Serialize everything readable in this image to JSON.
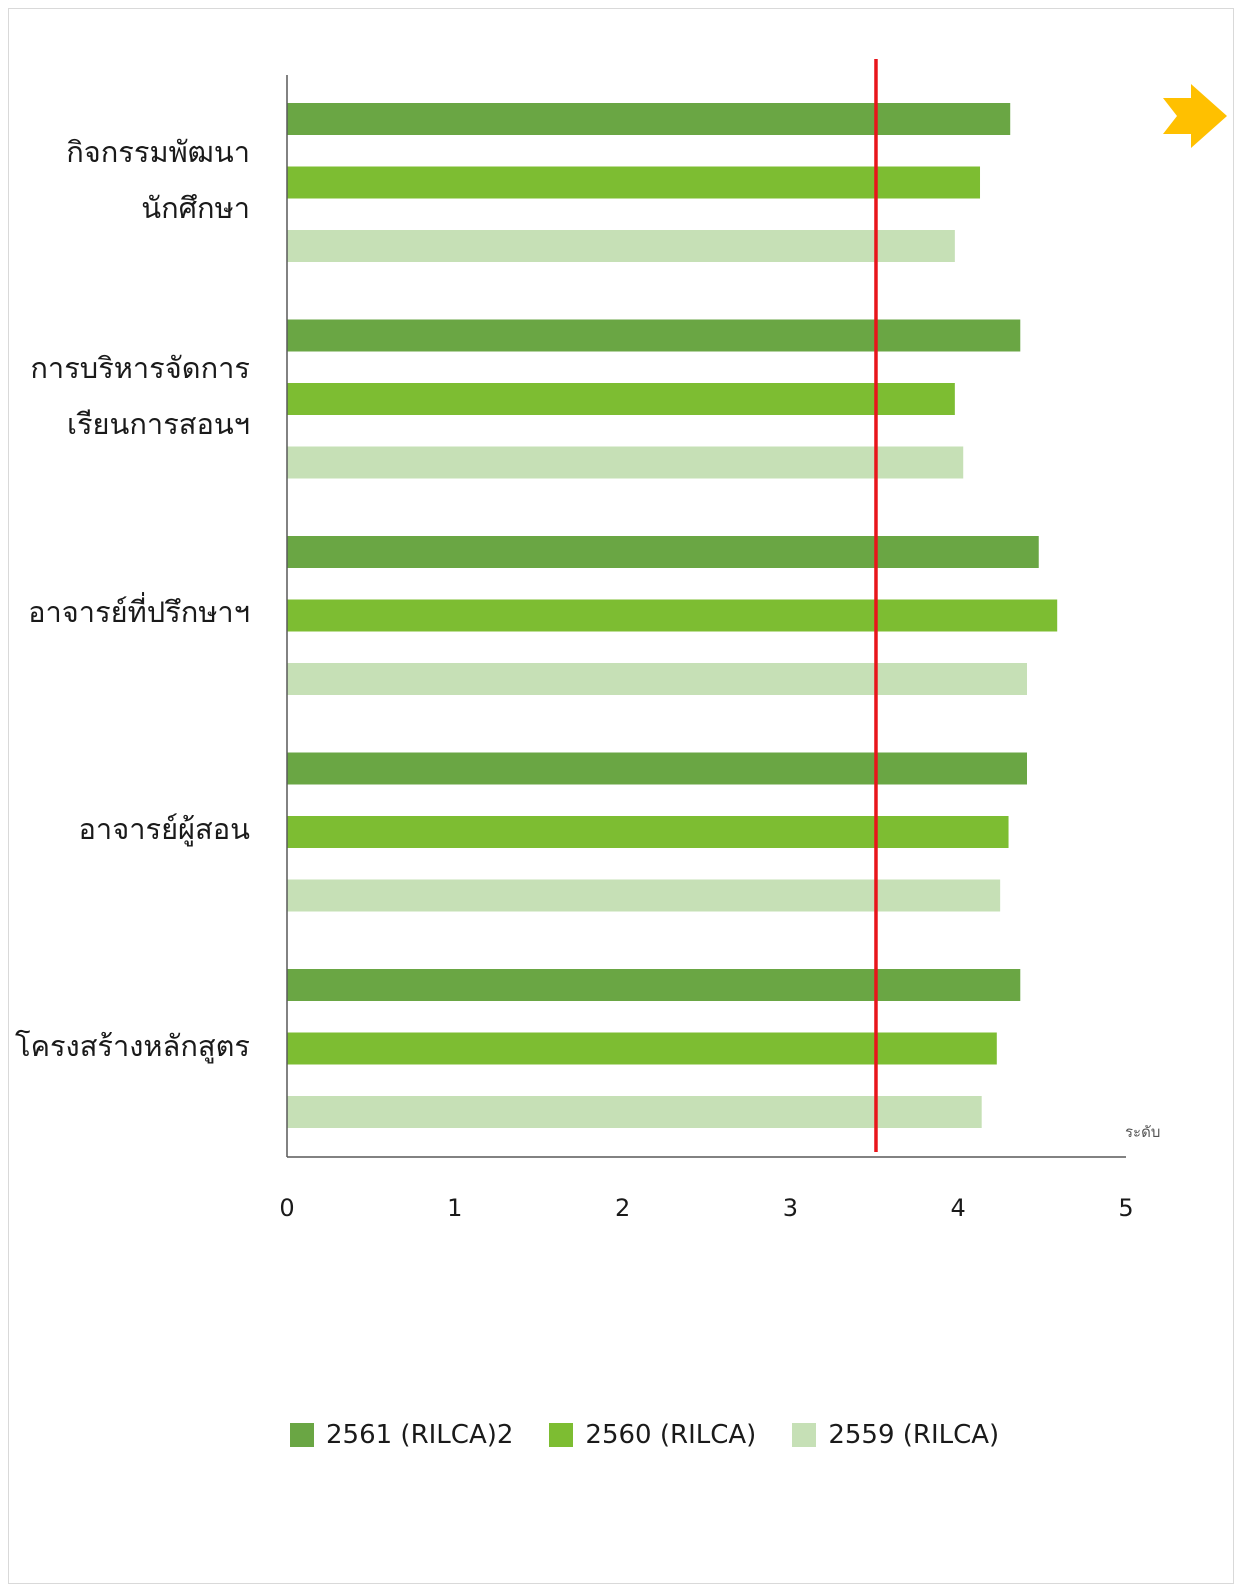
{
  "chart_data": {
    "type": "bar",
    "orientation": "horizontal",
    "categories": [
      "กิจกรรมพัฒนา\nนักศึกษา",
      "การบริหารจัดการ\nเรียนการสอนฯ",
      "อาจารย์ที่ปรึกษาฯ",
      "อาจารย์ผู้สอน",
      "โครงสร้างหลักสูตร"
    ],
    "series": [
      {
        "name": "2561 (RILCA)2",
        "color": "#6aa644",
        "values": [
          4.31,
          4.37,
          4.48,
          4.41,
          4.37
        ]
      },
      {
        "name": "2560 (RILCA)",
        "color": "#7dbd32",
        "values": [
          4.13,
          3.98,
          4.59,
          4.3,
          4.23
        ]
      },
      {
        "name": "2559 (RILCA)",
        "color": "#c6e0b6",
        "values": [
          3.98,
          4.03,
          4.41,
          4.25,
          4.14
        ]
      }
    ],
    "xlim": [
      0,
      5
    ],
    "xticks": [
      "0",
      "1",
      "2",
      "3",
      "4",
      "5"
    ],
    "xlabel": "ระดับ",
    "reference_line": {
      "value": 3.51,
      "color": "#e8151b"
    },
    "legend_position": "bottom",
    "grid": false
  },
  "decor": {
    "arrow_icon_color": "#ffc000"
  }
}
